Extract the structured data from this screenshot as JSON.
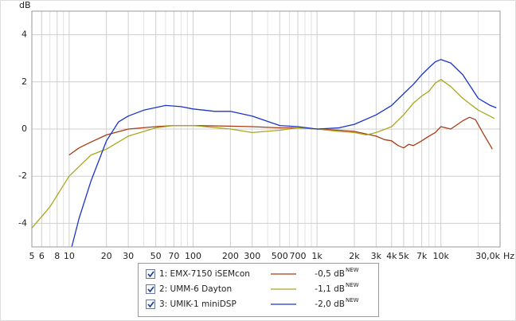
{
  "chart_data": {
    "type": "line",
    "y_label": "dB",
    "x_label": "Hz",
    "log_x": true,
    "grid": true,
    "xlim": [
      5,
      30000
    ],
    "ylim": [
      -5,
      5
    ],
    "yticks": [
      -4,
      -2,
      0,
      2,
      4
    ],
    "xticks": [
      5,
      6,
      8,
      10,
      20,
      30,
      50,
      70,
      100,
      200,
      300,
      500,
      700,
      {
        "value": 1000,
        "label": "1k"
      },
      {
        "value": 2000,
        "label": "2k"
      },
      {
        "value": 3000,
        "label": "3k"
      },
      {
        "value": 4000,
        "label": "4k"
      },
      {
        "value": 5000,
        "label": "5k"
      },
      {
        "value": 7000,
        "label": "7k"
      },
      {
        "value": 10000,
        "label": "10k"
      },
      {
        "value": 30000,
        "label": "30,0k"
      }
    ],
    "x_minor_gridlines": [
      7,
      9,
      40,
      60,
      80,
      90,
      400,
      600,
      800,
      900,
      6000,
      8000,
      9000,
      20000
    ],
    "series": [
      {
        "name": "1: EMX-7150 iSEMcon",
        "color": "#a83c14",
        "offset": "-0,5 dB",
        "badge": "NEW",
        "x": [
          10,
          12,
          15,
          20,
          30,
          50,
          70,
          100,
          200,
          300,
          500,
          700,
          1000,
          1500,
          2000,
          3000,
          3500,
          4000,
          4500,
          5000,
          5500,
          6000,
          7000,
          8000,
          9000,
          10000,
          12000,
          15000,
          17000,
          19000,
          22000,
          26000
        ],
        "values": [
          -1.1,
          -0.8,
          -0.55,
          -0.25,
          0.0,
          0.1,
          0.15,
          0.15,
          0.12,
          0.1,
          0.05,
          0.05,
          0.0,
          -0.05,
          -0.1,
          -0.3,
          -0.45,
          -0.5,
          -0.7,
          -0.8,
          -0.65,
          -0.7,
          -0.5,
          -0.3,
          -0.15,
          0.1,
          0.0,
          0.35,
          0.5,
          0.4,
          -0.2,
          -0.85
        ]
      },
      {
        "name": "2: UMM-6 Dayton",
        "color": "#a8a820",
        "offset": "-1,1 dB",
        "badge": "NEW",
        "x": [
          5,
          7,
          10,
          15,
          20,
          30,
          50,
          70,
          100,
          200,
          300,
          500,
          700,
          1000,
          1500,
          2000,
          2500,
          3000,
          4000,
          5000,
          6000,
          7000,
          8000,
          9000,
          10000,
          12000,
          15000,
          20000,
          27000
        ],
        "values": [
          -4.2,
          -3.3,
          -2.0,
          -1.1,
          -0.85,
          -0.3,
          0.05,
          0.15,
          0.15,
          0.0,
          -0.15,
          -0.05,
          0.05,
          0.0,
          -0.1,
          -0.15,
          -0.25,
          -0.15,
          0.1,
          0.6,
          1.1,
          1.4,
          1.6,
          1.95,
          2.1,
          1.8,
          1.3,
          0.8,
          0.45
        ]
      },
      {
        "name": "3: UMIK-1 miniDSP",
        "color": "#1a35c8",
        "offset": "-2,0 dB",
        "badge": "NEW",
        "x": [
          10.5,
          12,
          15,
          20,
          25,
          30,
          40,
          60,
          80,
          100,
          150,
          200,
          300,
          500,
          700,
          1000,
          1500,
          2000,
          3000,
          4000,
          5000,
          6000,
          7000,
          8000,
          9000,
          10000,
          12000,
          15000,
          20000,
          25000,
          28000
        ],
        "values": [
          -5.0,
          -3.8,
          -2.2,
          -0.5,
          0.3,
          0.55,
          0.8,
          1.0,
          0.95,
          0.85,
          0.75,
          0.75,
          0.55,
          0.15,
          0.1,
          0.0,
          0.05,
          0.2,
          0.6,
          1.0,
          1.5,
          1.9,
          2.3,
          2.6,
          2.85,
          2.95,
          2.8,
          2.3,
          1.3,
          1.0,
          0.9
        ]
      }
    ]
  }
}
